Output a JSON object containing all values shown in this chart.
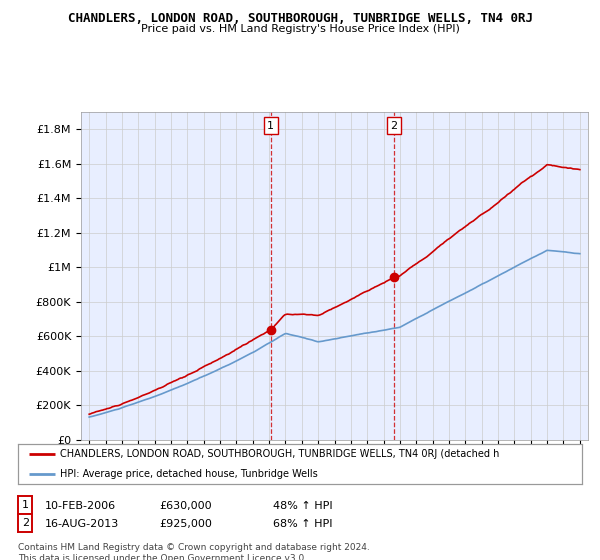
{
  "title": "CHANDLERS, LONDON ROAD, SOUTHBOROUGH, TUNBRIDGE WELLS, TN4 0RJ",
  "subtitle": "Price paid vs. HM Land Registry's House Price Index (HPI)",
  "hpi_color": "#6699cc",
  "price_color": "#cc0000",
  "sale1_date_label": "10-FEB-2006",
  "sale1_price": 630000,
  "sale1_hpi_pct": "48% ↑ HPI",
  "sale1_marker_date": 2006.1,
  "sale2_date_label": "16-AUG-2013",
  "sale2_price": 925000,
  "sale2_hpi_pct": "68% ↑ HPI",
  "sale2_marker_date": 2013.62,
  "legend_label_price": "CHANDLERS, LONDON ROAD, SOUTHBOROUGH, TUNBRIDGE WELLS, TN4 0RJ (detached h",
  "legend_label_hpi": "HPI: Average price, detached house, Tunbridge Wells",
  "footer": "Contains HM Land Registry data © Crown copyright and database right 2024.\nThis data is licensed under the Open Government Licence v3.0.",
  "ylim": [
    0,
    1900000
  ],
  "yticks": [
    0,
    200000,
    400000,
    600000,
    800000,
    1000000,
    1200000,
    1400000,
    1600000,
    1800000
  ],
  "ytick_labels": [
    "£0",
    "£200K",
    "£400K",
    "£600K",
    "£800K",
    "£1M",
    "£1.2M",
    "£1.4M",
    "£1.6M",
    "£1.8M"
  ],
  "background_color": "#e8eeff"
}
